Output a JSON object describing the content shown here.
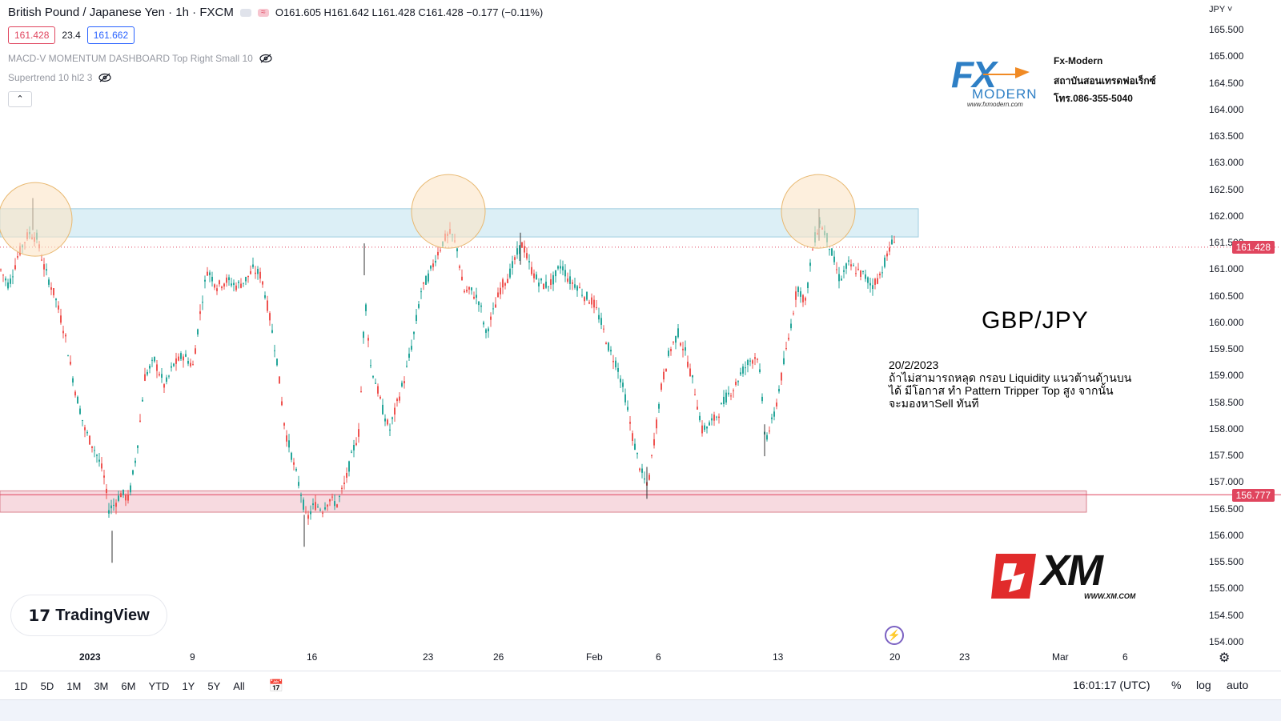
{
  "header": {
    "symbol": "British Pound / Japanese Yen · 1h · FXCM",
    "ohlc": "O161.605 H161.642 L161.428 C161.428 −0.177 (−0.11%)",
    "bid": "161.428",
    "spread": "23.4",
    "ask": "161.662",
    "indicator1": "MACD-V MOMENTUM DASHBOARD Top Right Small 10",
    "indicator2": "Supertrend 10 hl2 3",
    "collapse_icon": "chevron-up-icon",
    "hide_icon": "eye-off-icon"
  },
  "currency_label": "JPY",
  "current_price_tag": "161.428",
  "support_price_tag": "156.777",
  "brand_fx": {
    "mark": "FX",
    "sub": "MODERN",
    "url": "www.fxmodern.com",
    "name": "Fx-Modern",
    "thai": "สถาบันสอนเทรดฟอเร็กซ์",
    "phone": "โทร.086-355-5040"
  },
  "pair_label": "GBP/JPY",
  "note": {
    "date": "20/2/2023",
    "line1": "ถ้าไม่สามารถหลุด กรอบ Liquidity แนวต้านด้านบน",
    "line2": "ได้ มีโอกาส ทำ Pattern Tripper Top สูง จากนั้น",
    "line3": "จะมองหาSell ทันที"
  },
  "brand_xm": {
    "text": "XM",
    "url": "WWW.XM.COM"
  },
  "brand_tv": {
    "text": "TradingView"
  },
  "bottom": {
    "timeframes": [
      "1D",
      "5D",
      "1M",
      "3M",
      "6M",
      "YTD",
      "1Y",
      "5Y",
      "All"
    ],
    "clock": "16:01:17 (UTC)",
    "percent": "%",
    "log": "log",
    "auto": "auto"
  },
  "colors": {
    "up": "#26a69a",
    "down": "#ef5350",
    "resistance_zone": "#d6ecf5",
    "support_zone": "#f6d3da",
    "circle": "#fbe5c6",
    "price_tag": "#e0455e"
  },
  "chart_data": {
    "type": "candlestick",
    "title": "",
    "xlabel": "",
    "ylabel": "",
    "ylim": [
      154.0,
      165.5
    ],
    "y_ticks": [
      165.5,
      165.0,
      164.5,
      164.0,
      163.5,
      163.0,
      162.5,
      162.0,
      161.5,
      161.0,
      160.5,
      160.0,
      159.5,
      159.0,
      158.5,
      158.0,
      157.5,
      157.0,
      156.5,
      156.0,
      155.5,
      155.0,
      154.5,
      154.0
    ],
    "x_ticks": [
      {
        "label": "2023",
        "x": 107,
        "bold": true
      },
      {
        "label": "9",
        "x": 245
      },
      {
        "label": "16",
        "x": 391
      },
      {
        "label": "23",
        "x": 536
      },
      {
        "label": "26",
        "x": 624
      },
      {
        "label": "Feb",
        "x": 740
      },
      {
        "label": "6",
        "x": 827
      },
      {
        "label": "13",
        "x": 973
      },
      {
        "label": "20",
        "x": 1119
      },
      {
        "label": "23",
        "x": 1206
      },
      {
        "label": "Mar",
        "x": 1322
      },
      {
        "label": "6",
        "x": 1410
      }
    ],
    "price_path": [
      [
        0,
        161.0
      ],
      [
        10,
        160.7
      ],
      [
        22,
        161.3
      ],
      [
        35,
        161.7
      ],
      [
        45,
        161.6
      ],
      [
        55,
        161.0
      ],
      [
        68,
        160.5
      ],
      [
        80,
        159.8
      ],
      [
        92,
        158.8
      ],
      [
        105,
        158.0
      ],
      [
        118,
        157.6
      ],
      [
        128,
        157.2
      ],
      [
        135,
        156.5
      ],
      [
        142,
        156.6
      ],
      [
        150,
        156.8
      ],
      [
        160,
        156.7
      ],
      [
        170,
        157.6
      ],
      [
        180,
        159.0
      ],
      [
        192,
        159.3
      ],
      [
        205,
        158.8
      ],
      [
        215,
        159.2
      ],
      [
        228,
        159.4
      ],
      [
        240,
        159.2
      ],
      [
        250,
        160.3
      ],
      [
        258,
        161.0
      ],
      [
        270,
        160.7
      ],
      [
        282,
        160.8
      ],
      [
        295,
        160.7
      ],
      [
        305,
        160.8
      ],
      [
        315,
        161.0
      ],
      [
        325,
        160.9
      ],
      [
        335,
        160.2
      ],
      [
        345,
        159.3
      ],
      [
        355,
        158.0
      ],
      [
        365,
        157.4
      ],
      [
        375,
        156.8
      ],
      [
        382,
        156.3
      ],
      [
        392,
        156.6
      ],
      [
        402,
        156.5
      ],
      [
        410,
        156.7
      ],
      [
        420,
        156.6
      ],
      [
        430,
        157.0
      ],
      [
        440,
        157.6
      ],
      [
        448,
        158.0
      ],
      [
        455,
        160.5
      ],
      [
        462,
        159.2
      ],
      [
        470,
        158.8
      ],
      [
        478,
        158.3
      ],
      [
        486,
        158.0
      ],
      [
        495,
        158.5
      ],
      [
        505,
        159.0
      ],
      [
        515,
        159.7
      ],
      [
        525,
        160.6
      ],
      [
        535,
        160.9
      ],
      [
        545,
        161.3
      ],
      [
        555,
        161.6
      ],
      [
        562,
        161.7
      ],
      [
        570,
        161.4
      ],
      [
        578,
        160.6
      ],
      [
        588,
        160.6
      ],
      [
        598,
        160.4
      ],
      [
        606,
        159.8
      ],
      [
        615,
        160.2
      ],
      [
        625,
        160.7
      ],
      [
        635,
        160.9
      ],
      [
        645,
        161.3
      ],
      [
        652,
        161.5
      ],
      [
        660,
        161.1
      ],
      [
        670,
        160.8
      ],
      [
        680,
        160.7
      ],
      [
        690,
        160.8
      ],
      [
        700,
        161.1
      ],
      [
        710,
        160.8
      ],
      [
        720,
        160.7
      ],
      [
        730,
        160.5
      ],
      [
        740,
        160.4
      ],
      [
        750,
        160.0
      ],
      [
        760,
        159.5
      ],
      [
        770,
        159.2
      ],
      [
        780,
        158.6
      ],
      [
        790,
        157.8
      ],
      [
        800,
        157.2
      ],
      [
        808,
        156.9
      ],
      [
        816,
        157.8
      ],
      [
        826,
        158.9
      ],
      [
        836,
        159.5
      ],
      [
        846,
        159.8
      ],
      [
        856,
        159.4
      ],
      [
        866,
        158.8
      ],
      [
        876,
        158.0
      ],
      [
        886,
        158.1
      ],
      [
        896,
        158.3
      ],
      [
        906,
        158.6
      ],
      [
        916,
        158.8
      ],
      [
        926,
        159.1
      ],
      [
        936,
        159.3
      ],
      [
        946,
        159.4
      ],
      [
        955,
        157.8
      ],
      [
        965,
        158.2
      ],
      [
        975,
        159.0
      ],
      [
        985,
        159.8
      ],
      [
        995,
        160.7
      ],
      [
        1005,
        160.4
      ],
      [
        1015,
        161.5
      ],
      [
        1023,
        161.9
      ],
      [
        1032,
        161.6
      ],
      [
        1040,
        161.2
      ],
      [
        1048,
        160.8
      ],
      [
        1058,
        161.1
      ],
      [
        1068,
        161.0
      ],
      [
        1078,
        160.9
      ],
      [
        1088,
        160.7
      ],
      [
        1098,
        160.9
      ],
      [
        1108,
        161.3
      ],
      [
        1116,
        161.6
      ]
    ],
    "zones": [
      {
        "name": "resistance",
        "y_top": 162.15,
        "y_bottom": 161.62,
        "x_start": 0,
        "x_end": 1147
      },
      {
        "name": "support",
        "y_top": 156.85,
        "y_bottom": 156.45,
        "x_start": 0,
        "x_end": 1357
      }
    ],
    "circles": [
      {
        "x": 44,
        "y": 161.95
      },
      {
        "x": 560,
        "y": 162.1
      },
      {
        "x": 1022,
        "y": 162.1
      }
    ],
    "current_price": 161.428,
    "support_level": 156.777
  }
}
